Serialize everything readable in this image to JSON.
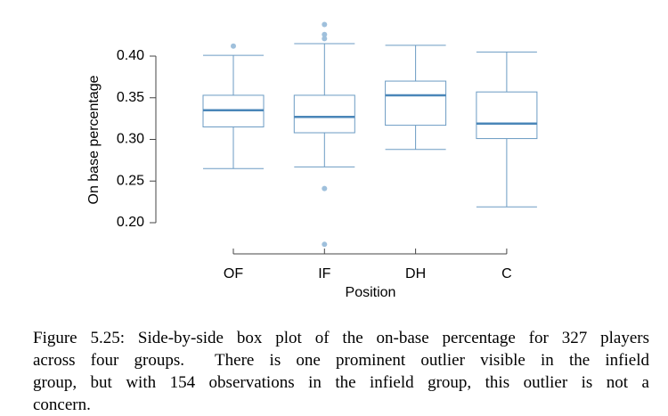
{
  "chart_data": {
    "type": "box",
    "y_label": "On base percentage",
    "x_label": "Position",
    "categories": [
      "OF",
      "IF",
      "DH",
      "C"
    ],
    "boxes": [
      {
        "low": 0.265,
        "q1": 0.315,
        "median": 0.335,
        "q3": 0.353,
        "high": 0.401,
        "outliers": [
          0.412
        ]
      },
      {
        "low": 0.267,
        "q1": 0.308,
        "median": 0.327,
        "q3": 0.353,
        "high": 0.415,
        "outliers": [
          0.438,
          0.426,
          0.421,
          0.241,
          0.174
        ]
      },
      {
        "low": 0.288,
        "q1": 0.317,
        "median": 0.353,
        "q3": 0.37,
        "high": 0.413,
        "outliers": []
      },
      {
        "low": 0.219,
        "q1": 0.301,
        "median": 0.319,
        "q3": 0.357,
        "high": 0.405,
        "outliers": []
      }
    ],
    "color": "#6b9bc3",
    "median_color": "#4a86b8",
    "outlier_color": "#9fc0dc",
    "ylim": [
      0.16,
      0.44
    ],
    "yticks": [
      {
        "value": 0.2,
        "label": "0.20"
      },
      0.25,
      {
        "value": 0.3,
        "label": "0.30"
      },
      0.35,
      {
        "value": 0.4,
        "label": "0.40"
      }
    ]
  },
  "caption": [
    "Figure 5.25: Side-by-side box plot of the on-base percentage for 327 players",
    "across four groups.  There is one prominent outlier visible in the infield",
    "group, but with 154 observations in the infield group, this outlier is not a",
    "concern."
  ]
}
